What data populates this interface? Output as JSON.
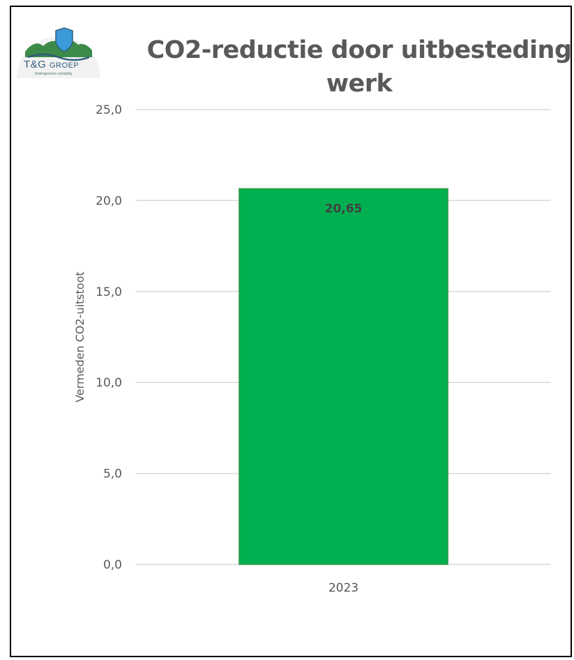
{
  "logo": {
    "name": "T&G",
    "name_sub": "GROEP",
    "tagline": "buitengewoon veelzijdig",
    "colors": {
      "shield": "#3b9bd9",
      "hills": "#3d8b4a",
      "dark": "#2f5d7a"
    }
  },
  "chart_data": {
    "type": "bar",
    "title": "CO2-reductie door uitbesteding werk",
    "xlabel": "",
    "ylabel": "Vermeden CO2-uitstoot",
    "categories": [
      "2023"
    ],
    "values": [
      20.65
    ],
    "value_labels": [
      "20,65"
    ],
    "ylim": [
      0,
      25
    ],
    "yticks": [
      0,
      5,
      10,
      15,
      20,
      25
    ],
    "ytick_labels": [
      "0,0",
      "5,0",
      "10,0",
      "15,0",
      "20,0",
      "25,0"
    ],
    "grid": true,
    "legend": "none",
    "bar_color": "#00b050",
    "grid_color": "#d9d9d9"
  }
}
